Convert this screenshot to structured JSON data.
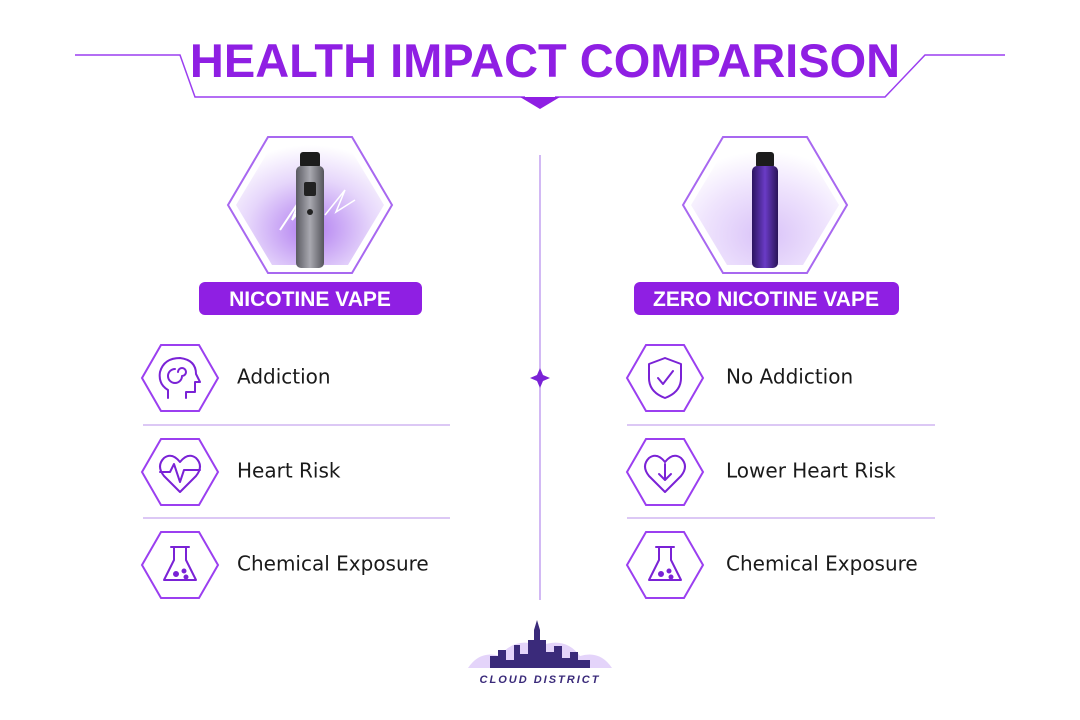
{
  "header": {
    "title": "HEALTH IMPACT COMPARISON"
  },
  "columns": [
    {
      "label": "NICOTINE VAPE",
      "items": [
        "Addiction",
        "Heart Risk",
        "Chemical Exposure"
      ]
    },
    {
      "label": "ZERO NICOTINE VAPE",
      "items": [
        "No Addiction",
        "Lower Heart Risk",
        "Chemical Exposure"
      ]
    }
  ],
  "footer": {
    "logo": "CLOUD DISTRICT"
  }
}
